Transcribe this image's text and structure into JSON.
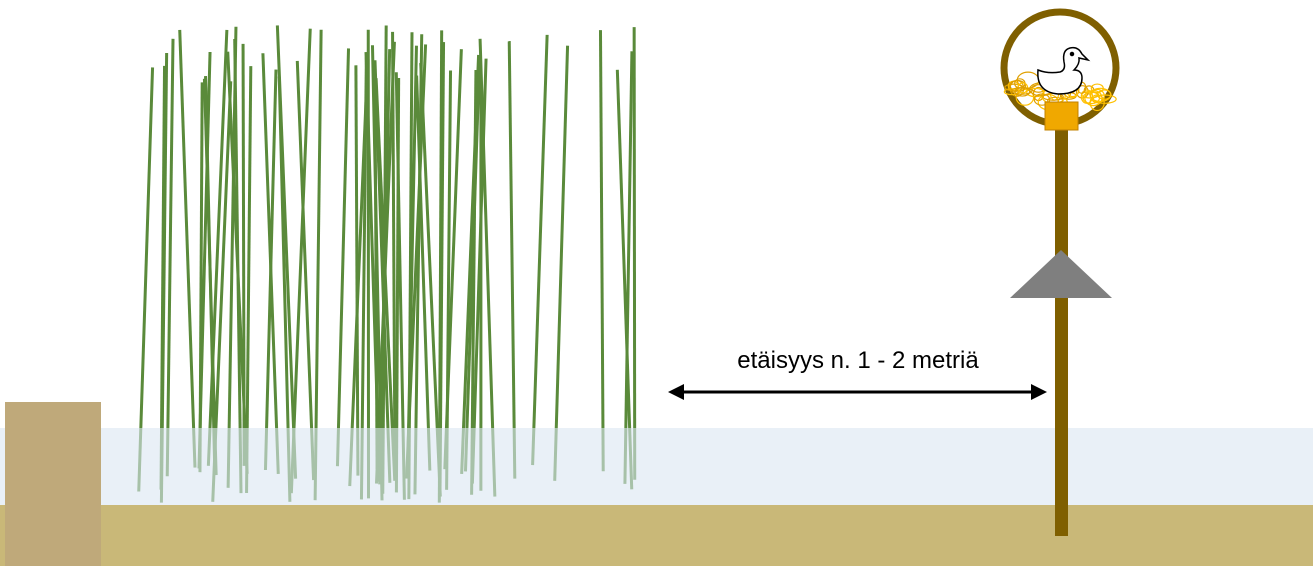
{
  "label": "etäisyys n. 1 - 2 metriä"
}
